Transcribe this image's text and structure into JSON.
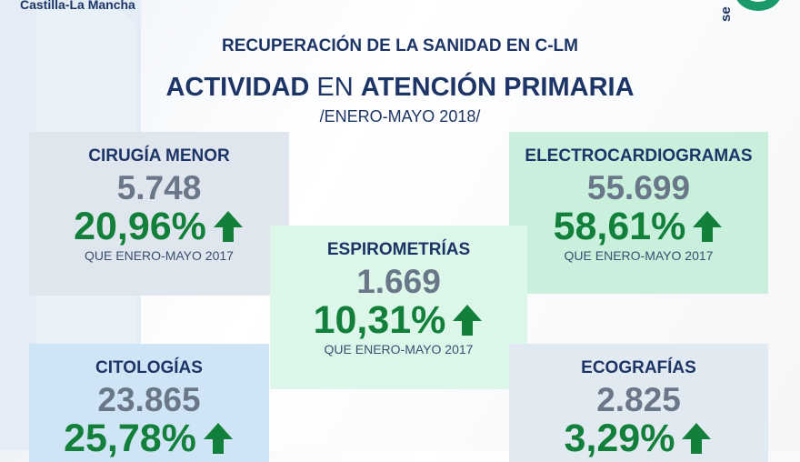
{
  "brand": "Castilla-La Mancha",
  "logo_text": "se",
  "header": {
    "subtitle": "RECUPERACIÓN DE LA SANIDAD EN C-LM",
    "title_bold1": "ACTIVIDAD",
    "title_mid": "EN",
    "title_bold2": "ATENCIÓN PRIMARIA",
    "period": "/ENERO-MAYO 2018/"
  },
  "colors": {
    "navy": "#1d3566",
    "green": "#12803a"
  },
  "cards": [
    {
      "title": "CIRUGÍA MENOR",
      "value": "5.748",
      "pct": "20,96%",
      "note": "QUE ENERO-MAYO 2017"
    },
    {
      "title": "ELECTROCARDIOGRAMAS",
      "value": "55.699",
      "pct": "58,61%",
      "note": "QUE ENERO-MAYO 2017"
    },
    {
      "title": "ESPIROMETRÍAS",
      "value": "1.669",
      "pct": "10,31%",
      "note": "QUE ENERO-MAYO 2017"
    },
    {
      "title": "CITOLOGÍAS",
      "value": "23.865",
      "pct": "25,78%"
    },
    {
      "title": "ECOGRAFÍAS",
      "value": "2.825",
      "pct": "3,29%"
    }
  ]
}
